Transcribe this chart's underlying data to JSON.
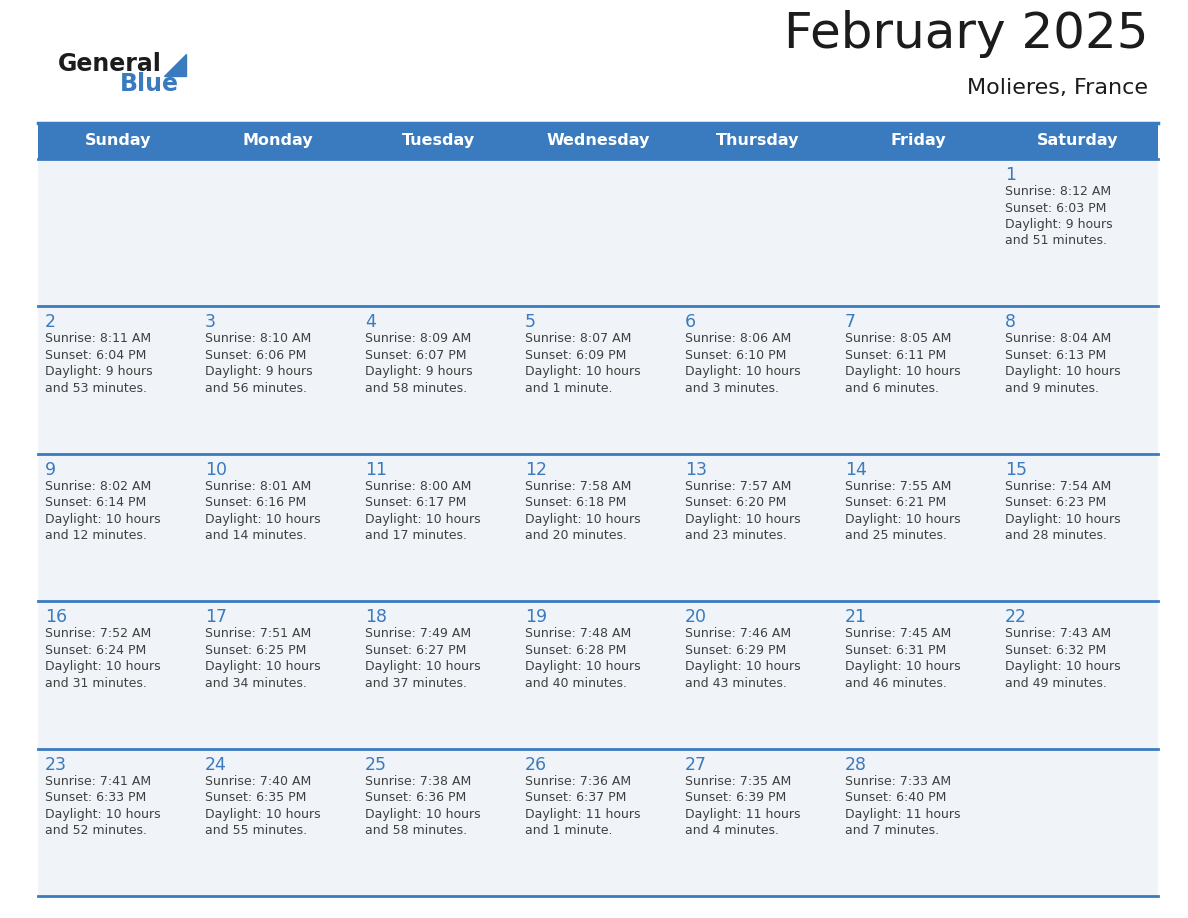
{
  "title": "February 2025",
  "subtitle": "Molieres, France",
  "days_of_week": [
    "Sunday",
    "Monday",
    "Tuesday",
    "Wednesday",
    "Thursday",
    "Friday",
    "Saturday"
  ],
  "header_bg_color": "#3a7abf",
  "header_text_color": "#ffffff",
  "cell_bg_color": "#f0f4f8",
  "day_number_color": "#3a7abf",
  "info_text_color": "#404040",
  "grid_color": "#3a7abf",
  "background_color": "#ffffff",
  "calendar_data": [
    [
      null,
      null,
      null,
      null,
      null,
      null,
      {
        "day": 1,
        "sunrise": "8:12 AM",
        "sunset": "6:03 PM",
        "daylight_line1": "Daylight: 9 hours",
        "daylight_line2": "and 51 minutes."
      }
    ],
    [
      {
        "day": 2,
        "sunrise": "8:11 AM",
        "sunset": "6:04 PM",
        "daylight_line1": "Daylight: 9 hours",
        "daylight_line2": "and 53 minutes."
      },
      {
        "day": 3,
        "sunrise": "8:10 AM",
        "sunset": "6:06 PM",
        "daylight_line1": "Daylight: 9 hours",
        "daylight_line2": "and 56 minutes."
      },
      {
        "day": 4,
        "sunrise": "8:09 AM",
        "sunset": "6:07 PM",
        "daylight_line1": "Daylight: 9 hours",
        "daylight_line2": "and 58 minutes."
      },
      {
        "day": 5,
        "sunrise": "8:07 AM",
        "sunset": "6:09 PM",
        "daylight_line1": "Daylight: 10 hours",
        "daylight_line2": "and 1 minute."
      },
      {
        "day": 6,
        "sunrise": "8:06 AM",
        "sunset": "6:10 PM",
        "daylight_line1": "Daylight: 10 hours",
        "daylight_line2": "and 3 minutes."
      },
      {
        "day": 7,
        "sunrise": "8:05 AM",
        "sunset": "6:11 PM",
        "daylight_line1": "Daylight: 10 hours",
        "daylight_line2": "and 6 minutes."
      },
      {
        "day": 8,
        "sunrise": "8:04 AM",
        "sunset": "6:13 PM",
        "daylight_line1": "Daylight: 10 hours",
        "daylight_line2": "and 9 minutes."
      }
    ],
    [
      {
        "day": 9,
        "sunrise": "8:02 AM",
        "sunset": "6:14 PM",
        "daylight_line1": "Daylight: 10 hours",
        "daylight_line2": "and 12 minutes."
      },
      {
        "day": 10,
        "sunrise": "8:01 AM",
        "sunset": "6:16 PM",
        "daylight_line1": "Daylight: 10 hours",
        "daylight_line2": "and 14 minutes."
      },
      {
        "day": 11,
        "sunrise": "8:00 AM",
        "sunset": "6:17 PM",
        "daylight_line1": "Daylight: 10 hours",
        "daylight_line2": "and 17 minutes."
      },
      {
        "day": 12,
        "sunrise": "7:58 AM",
        "sunset": "6:18 PM",
        "daylight_line1": "Daylight: 10 hours",
        "daylight_line2": "and 20 minutes."
      },
      {
        "day": 13,
        "sunrise": "7:57 AM",
        "sunset": "6:20 PM",
        "daylight_line1": "Daylight: 10 hours",
        "daylight_line2": "and 23 minutes."
      },
      {
        "day": 14,
        "sunrise": "7:55 AM",
        "sunset": "6:21 PM",
        "daylight_line1": "Daylight: 10 hours",
        "daylight_line2": "and 25 minutes."
      },
      {
        "day": 15,
        "sunrise": "7:54 AM",
        "sunset": "6:23 PM",
        "daylight_line1": "Daylight: 10 hours",
        "daylight_line2": "and 28 minutes."
      }
    ],
    [
      {
        "day": 16,
        "sunrise": "7:52 AM",
        "sunset": "6:24 PM",
        "daylight_line1": "Daylight: 10 hours",
        "daylight_line2": "and 31 minutes."
      },
      {
        "day": 17,
        "sunrise": "7:51 AM",
        "sunset": "6:25 PM",
        "daylight_line1": "Daylight: 10 hours",
        "daylight_line2": "and 34 minutes."
      },
      {
        "day": 18,
        "sunrise": "7:49 AM",
        "sunset": "6:27 PM",
        "daylight_line1": "Daylight: 10 hours",
        "daylight_line2": "and 37 minutes."
      },
      {
        "day": 19,
        "sunrise": "7:48 AM",
        "sunset": "6:28 PM",
        "daylight_line1": "Daylight: 10 hours",
        "daylight_line2": "and 40 minutes."
      },
      {
        "day": 20,
        "sunrise": "7:46 AM",
        "sunset": "6:29 PM",
        "daylight_line1": "Daylight: 10 hours",
        "daylight_line2": "and 43 minutes."
      },
      {
        "day": 21,
        "sunrise": "7:45 AM",
        "sunset": "6:31 PM",
        "daylight_line1": "Daylight: 10 hours",
        "daylight_line2": "and 46 minutes."
      },
      {
        "day": 22,
        "sunrise": "7:43 AM",
        "sunset": "6:32 PM",
        "daylight_line1": "Daylight: 10 hours",
        "daylight_line2": "and 49 minutes."
      }
    ],
    [
      {
        "day": 23,
        "sunrise": "7:41 AM",
        "sunset": "6:33 PM",
        "daylight_line1": "Daylight: 10 hours",
        "daylight_line2": "and 52 minutes."
      },
      {
        "day": 24,
        "sunrise": "7:40 AM",
        "sunset": "6:35 PM",
        "daylight_line1": "Daylight: 10 hours",
        "daylight_line2": "and 55 minutes."
      },
      {
        "day": 25,
        "sunrise": "7:38 AM",
        "sunset": "6:36 PM",
        "daylight_line1": "Daylight: 10 hours",
        "daylight_line2": "and 58 minutes."
      },
      {
        "day": 26,
        "sunrise": "7:36 AM",
        "sunset": "6:37 PM",
        "daylight_line1": "Daylight: 11 hours",
        "daylight_line2": "and 1 minute."
      },
      {
        "day": 27,
        "sunrise": "7:35 AM",
        "sunset": "6:39 PM",
        "daylight_line1": "Daylight: 11 hours",
        "daylight_line2": "and 4 minutes."
      },
      {
        "day": 28,
        "sunrise": "7:33 AM",
        "sunset": "6:40 PM",
        "daylight_line1": "Daylight: 11 hours",
        "daylight_line2": "and 7 minutes."
      },
      null
    ]
  ]
}
